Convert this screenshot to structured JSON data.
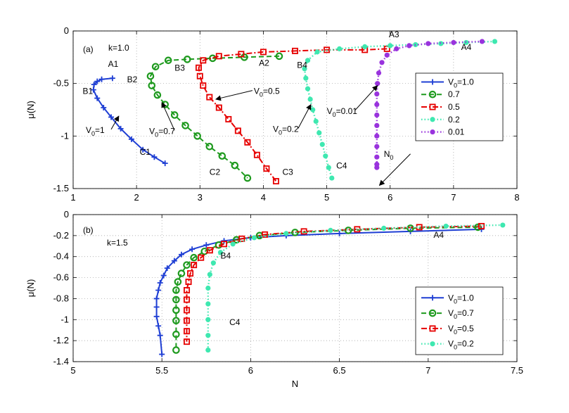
{
  "chart_data": [
    {
      "type": "line",
      "panel_label": "(a)",
      "k_label": "k=1.0",
      "xlabel": "",
      "ylabel": "μ(N)",
      "xlim": [
        1,
        8
      ],
      "ylim": [
        -1.5,
        0
      ],
      "xticks": [
        "1",
        "2",
        "3",
        "4",
        "5",
        "6",
        "7",
        "8"
      ],
      "yticks": [
        "0",
        "-0.5",
        "-1",
        "-1.5"
      ],
      "grid": true,
      "legend_position": "right",
      "series": [
        {
          "name": "V",
          "sub": "0",
          "tail": "=1.0",
          "color": "#1f3fd4",
          "marker": "plus",
          "dash": "solid",
          "x": [
            1.62,
            1.45,
            1.38,
            1.33,
            1.32,
            1.38,
            1.48,
            1.6,
            1.75,
            1.92,
            2.1,
            2.28,
            2.45
          ],
          "y": [
            -0.45,
            -0.46,
            -0.48,
            -0.51,
            -0.56,
            -0.64,
            -0.73,
            -0.82,
            -0.93,
            -1.03,
            -1.13,
            -1.2,
            -1.26
          ]
        },
        {
          "name": "",
          "sub": "",
          "tail": "0.7",
          "color": "#1e9a1e",
          "marker": "circle",
          "dash": "dashed",
          "x": [
            4.25,
            3.7,
            3.2,
            2.8,
            2.5,
            2.3,
            2.22,
            2.24,
            2.33,
            2.45,
            2.6,
            2.77,
            2.96,
            3.15,
            3.35,
            3.55,
            3.75
          ],
          "y": [
            -0.24,
            -0.25,
            -0.26,
            -0.27,
            -0.28,
            -0.34,
            -0.43,
            -0.52,
            -0.61,
            -0.7,
            -0.8,
            -0.9,
            -1.0,
            -1.1,
            -1.19,
            -1.28,
            -1.4
          ]
        },
        {
          "name": "",
          "sub": "",
          "tail": "0.5",
          "color": "#e60000",
          "marker": "square",
          "dash": "dashdot",
          "x": [
            5.95,
            5.6,
            5.0,
            4.5,
            4.0,
            3.65,
            3.3,
            3.05,
            2.98,
            3.0,
            3.05,
            3.15,
            3.3,
            3.45,
            3.6,
            3.75,
            3.9,
            4.05,
            4.2
          ],
          "y": [
            -0.17,
            -0.18,
            -0.18,
            -0.19,
            -0.2,
            -0.22,
            -0.24,
            -0.28,
            -0.35,
            -0.43,
            -0.52,
            -0.63,
            -0.73,
            -0.84,
            -0.95,
            -1.06,
            -1.18,
            -1.31,
            -1.43
          ]
        },
        {
          "name": "",
          "sub": "",
          "tail": "0.2",
          "color": "#3ee8b0",
          "marker": "dot",
          "dash": "dotted",
          "x": [
            7.65,
            7.2,
            6.8,
            6.4,
            6.0,
            5.6,
            5.2,
            4.85,
            4.7,
            4.65,
            4.67,
            4.7,
            4.74,
            4.78,
            4.83,
            4.88,
            4.93,
            4.98,
            5.03,
            5.08
          ],
          "y": [
            -0.1,
            -0.11,
            -0.12,
            -0.13,
            -0.14,
            -0.15,
            -0.17,
            -0.2,
            -0.28,
            -0.36,
            -0.45,
            -0.55,
            -0.65,
            -0.75,
            -0.86,
            -0.97,
            -1.08,
            -1.19,
            -1.3,
            -1.4
          ]
        },
        {
          "name": "",
          "sub": "",
          "tail": "0.01",
          "color": "#9933dd",
          "marker": "dot",
          "dash": "dotted",
          "x": [
            7.45,
            7.0,
            6.6,
            6.3,
            6.1,
            5.95,
            5.87,
            5.82,
            5.8,
            5.79,
            5.79,
            5.79,
            5.79,
            5.79,
            5.79,
            5.79,
            5.79,
            5.79
          ],
          "y": [
            -0.1,
            -0.11,
            -0.12,
            -0.14,
            -0.17,
            -0.23,
            -0.3,
            -0.4,
            -0.5,
            -0.6,
            -0.7,
            -0.8,
            -0.9,
            -1.0,
            -1.1,
            -1.2,
            -1.3,
            -1.27
          ]
        }
      ],
      "annotations": [
        {
          "text": "A1",
          "x": 1.55,
          "y": -0.34
        },
        {
          "text": "B1",
          "x": 1.15,
          "y": -0.6
        },
        {
          "text": "C1",
          "x": 2.05,
          "y": -1.18
        },
        {
          "text": "A2",
          "x": 3.93,
          "y": -0.33
        },
        {
          "text": "B2",
          "x": 1.85,
          "y": -0.49
        },
        {
          "text": "C2",
          "x": 3.15,
          "y": -1.37
        },
        {
          "text": "A3",
          "x": 5.98,
          "y": -0.06
        },
        {
          "text": "B3",
          "x": 2.6,
          "y": -0.38
        },
        {
          "text": "C3",
          "x": 4.3,
          "y": -1.37
        },
        {
          "text": "A4",
          "x": 7.12,
          "y": -0.18
        },
        {
          "text": "B4",
          "x": 4.53,
          "y": -0.35
        },
        {
          "text": "C4",
          "x": 5.15,
          "y": -1.31
        },
        {
          "text": "N",
          "sub": "0",
          "x": 5.9,
          "y": -1.2
        }
      ],
      "arrows": [
        {
          "label": "V",
          "sub": "0",
          "tail": "=1",
          "text_x": 1.2,
          "text_y": -0.97,
          "head_x": 1.72,
          "head_y": -0.81
        },
        {
          "label": "V",
          "sub": "0",
          "tail": "=0.7",
          "text_x": 2.2,
          "text_y": -0.98,
          "head_x": 2.4,
          "head_y": -0.68
        },
        {
          "label": "V",
          "sub": "0",
          "tail": "=0.5",
          "text_x": 3.85,
          "text_y": -0.6,
          "head_x": 3.25,
          "head_y": -0.65
        },
        {
          "label": "V",
          "sub": "0",
          "tail": "=0.2",
          "text_x": 4.15,
          "text_y": -0.96,
          "head_x": 4.75,
          "head_y": -0.7
        },
        {
          "label": "V",
          "sub": "0",
          "tail": "=0.01",
          "text_x": 5.0,
          "text_y": -0.79,
          "head_x": 5.8,
          "head_y": -0.52
        },
        {
          "label": "",
          "sub": "",
          "tail": "",
          "text_x": 6.32,
          "text_y": -1.17,
          "head_x": 5.83,
          "head_y": -1.47
        }
      ]
    },
    {
      "type": "line",
      "panel_label": "(b)",
      "k_label": "k=1.5",
      "xlabel": "N",
      "ylabel": "μ(N)",
      "xlim": [
        5,
        7.5
      ],
      "ylim": [
        -1.4,
        0
      ],
      "xticks": [
        "5",
        "5.5",
        "6",
        "6.5",
        "7",
        "7.5"
      ],
      "yticks": [
        "0",
        "-0.2",
        "-0.4",
        "-0.6",
        "-0.8",
        "-1",
        "-1.2",
        "-1.4"
      ],
      "grid": true,
      "legend_position": "bottom-right",
      "series": [
        {
          "name": "V",
          "sub": "0",
          "tail": "=1.0",
          "color": "#1f3fd4",
          "marker": "plus",
          "dash": "solid",
          "x": [
            7.3,
            6.9,
            6.5,
            6.2,
            6.0,
            5.85,
            5.75,
            5.67,
            5.61,
            5.57,
            5.53,
            5.51,
            5.49,
            5.48,
            5.47,
            5.47,
            5.47,
            5.48,
            5.49,
            5.5
          ],
          "y": [
            -0.14,
            -0.16,
            -0.18,
            -0.2,
            -0.22,
            -0.25,
            -0.29,
            -0.33,
            -0.38,
            -0.44,
            -0.51,
            -0.58,
            -0.65,
            -0.72,
            -0.8,
            -0.88,
            -0.97,
            -1.06,
            -1.15,
            -1.33
          ]
        },
        {
          "name": "V",
          "sub": "0",
          "tail": "=0.7",
          "color": "#1e9a1e",
          "marker": "circle",
          "dash": "dashed",
          "x": [
            7.28,
            6.9,
            6.55,
            6.25,
            6.05,
            5.92,
            5.82,
            5.74,
            5.68,
            5.64,
            5.61,
            5.59,
            5.58,
            5.58,
            5.58,
            5.58,
            5.58,
            5.58
          ],
          "y": [
            -0.12,
            -0.13,
            -0.15,
            -0.17,
            -0.2,
            -0.24,
            -0.29,
            -0.35,
            -0.41,
            -0.48,
            -0.56,
            -0.64,
            -0.72,
            -0.81,
            -0.91,
            -1.01,
            -1.14,
            -1.29
          ]
        },
        {
          "name": "V",
          "sub": "0",
          "tail": "=0.5",
          "color": "#e60000",
          "marker": "square",
          "dash": "dashdot",
          "x": [
            7.3,
            6.95,
            6.6,
            6.3,
            6.08,
            5.95,
            5.85,
            5.77,
            5.72,
            5.68,
            5.66,
            5.65,
            5.64,
            5.64,
            5.64,
            5.64,
            5.64,
            5.64
          ],
          "y": [
            -0.11,
            -0.12,
            -0.14,
            -0.16,
            -0.19,
            -0.23,
            -0.28,
            -0.34,
            -0.41,
            -0.48,
            -0.56,
            -0.64,
            -0.72,
            -0.81,
            -0.91,
            -1.01,
            -1.11,
            -1.21
          ]
        },
        {
          "name": "V",
          "sub": "0",
          "tail": "=0.2",
          "color": "#3ee8b0",
          "marker": "dot",
          "dash": "dotted",
          "x": [
            7.42,
            7.1,
            6.75,
            6.45,
            6.2,
            6.02,
            5.9,
            5.83,
            5.79,
            5.77,
            5.76,
            5.76,
            5.76,
            5.76,
            5.76
          ],
          "y": [
            -0.1,
            -0.11,
            -0.13,
            -0.15,
            -0.18,
            -0.22,
            -0.28,
            -0.36,
            -0.46,
            -0.57,
            -0.7,
            -0.85,
            -1.0,
            -1.15,
            -1.29
          ]
        }
      ],
      "annotations": [
        {
          "text": "A4",
          "x": 7.03,
          "y": -0.22
        },
        {
          "text": "B4",
          "x": 5.83,
          "y": -0.42
        },
        {
          "text": "C4",
          "x": 5.88,
          "y": -1.05
        }
      ],
      "arrows": []
    }
  ]
}
